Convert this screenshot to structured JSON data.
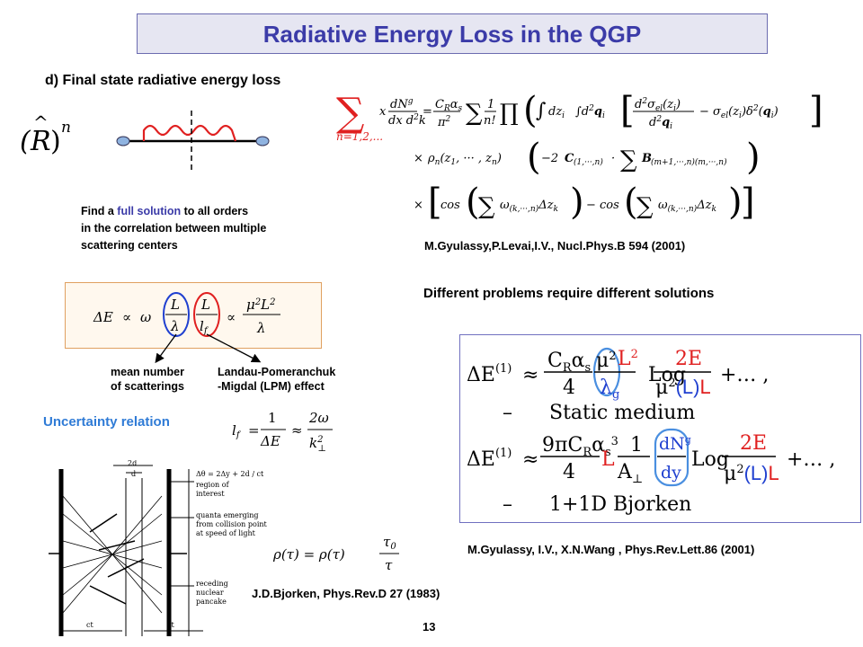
{
  "title": "Radiative Energy Loss in the QGP",
  "section_label": "d) Final state radiative energy loss",
  "note": {
    "line1_before": "Find a ",
    "line1_highlight": "full solution",
    "line1_after": " to all orders",
    "line2": "in the correlation between multiple",
    "line3": "scattering centers"
  },
  "refs": {
    "glv": "M.Gyulassy,P.Levai,I.V., Nucl.Phys.B 594 (2001)",
    "gvw": "M.Gyulassy, I.V., X.N.Wang , Phys.Rev.Lett.86 (2001)",
    "bjorken": "J.D.Bjorken, Phys.Rev.D 27 (1983)"
  },
  "heading_right": "Different problems require different solutions",
  "arrow_labels": {
    "left_line1": "mean number",
    "left_line2": "of scatterings",
    "right_line1": "Landau-Pomeranchuk",
    "right_line2": "-Migdal (LPM) effect"
  },
  "uncertainty_label": "Uncertainty relation",
  "box_labels": {
    "static": "Static medium",
    "bjorken": "1+1D Bjorken"
  },
  "bjorken_figure_labels": {
    "top1": "2d",
    "top2": "d",
    "formula": "Δθ = 2Δy + 2d / ct",
    "region": "region of",
    "region2": "interest",
    "quanta1": "quanta emerging",
    "quanta2": "from collision point",
    "quanta3": "at speed of light",
    "receding1": "receding",
    "receding2": "nuclear",
    "receding3": "pancake",
    "ct_left": "ct",
    "ct_right": "ct"
  },
  "page_number": "13",
  "colors": {
    "title_text": "#3b3ba8",
    "title_bg": "#e6e6f2",
    "highlight": "#3b3ba8",
    "uncertainty": "#2f7bd6",
    "red": "#e02020",
    "blue": "#2040d0"
  }
}
